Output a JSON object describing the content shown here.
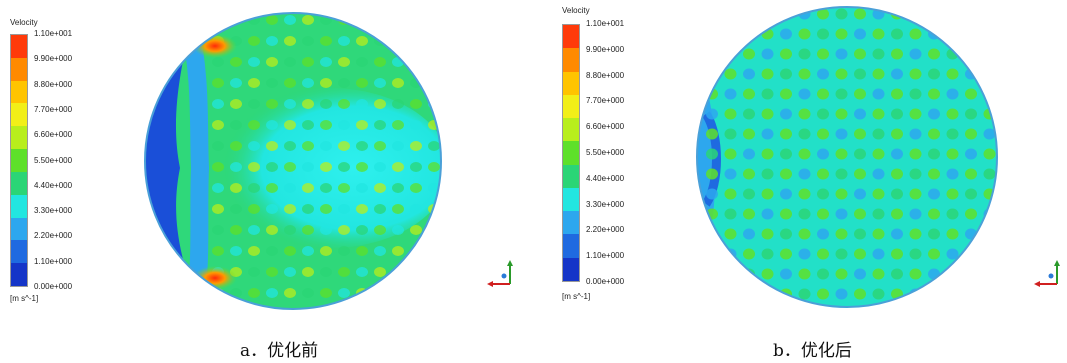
{
  "chart_data": [
    {
      "type": "heatmap",
      "legend_title": "Velocity",
      "legend_ticks": [
        "1.10e+001",
        "9.90e+000",
        "8.80e+000",
        "7.70e+000",
        "6.60e+000",
        "5.50e+000",
        "4.40e+000",
        "3.30e+000",
        "2.20e+000",
        "1.10e+000",
        "0.00e+000"
      ],
      "unit": "[m s^-1]",
      "colormap": [
        "#ff3a0a",
        "#ff8a00",
        "#ffc400",
        "#f2ef18",
        "#b8ee1c",
        "#5ee02a",
        "#2bd576",
        "#22e6e0",
        "#2da7ee",
        "#1f6ae0",
        "#1535c8"
      ],
      "range": [
        0,
        11
      ],
      "caption": "a．优化前"
    },
    {
      "type": "heatmap",
      "legend_title": "Velocity",
      "legend_ticks": [
        "1.10e+001",
        "9.90e+000",
        "8.80e+000",
        "7.70e+000",
        "6.60e+000",
        "5.50e+000",
        "4.40e+000",
        "3.30e+000",
        "2.20e+000",
        "1.10e+000",
        "0.00e+000"
      ],
      "unit": "[m s^-1]",
      "colormap": [
        "#ff3a0a",
        "#ff8a00",
        "#ffc400",
        "#f2ef18",
        "#b8ee1c",
        "#5ee02a",
        "#2bd576",
        "#22e6e0",
        "#2da7ee",
        "#1f6ae0",
        "#1535c8"
      ],
      "range": [
        0,
        11
      ],
      "caption": "b．优化后"
    }
  ]
}
